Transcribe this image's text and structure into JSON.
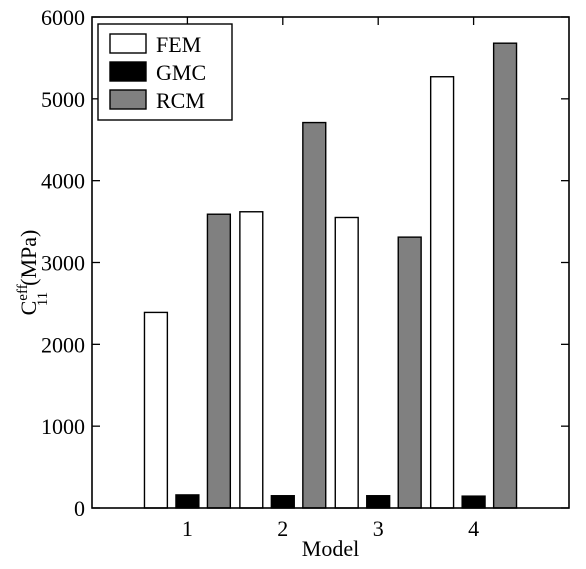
{
  "chart_data": {
    "type": "bar",
    "categories": [
      "1",
      "2",
      "3",
      "4"
    ],
    "series": [
      {
        "name": "FEM",
        "values": [
          2390,
          3620,
          3550,
          5270
        ],
        "color": "#ffffff"
      },
      {
        "name": "GMC",
        "values": [
          160,
          150,
          150,
          145
        ],
        "color": "#000000"
      },
      {
        "name": "RCM",
        "values": [
          3590,
          4710,
          3310,
          5680
        ],
        "color": "#808080"
      }
    ],
    "xlabel": "Model",
    "ylabel_main": "C",
    "ylabel_sup": "eff",
    "ylabel_sub": "11",
    "ylabel_unit": "(MPa)",
    "xlim": [
      0,
      5
    ],
    "ylim": [
      0,
      6000
    ],
    "yticks": [
      0,
      1000,
      2000,
      3000,
      4000,
      5000,
      6000
    ],
    "xticks": [
      1,
      2,
      3,
      4
    ],
    "grid": false,
    "legend_position": "top-left"
  }
}
